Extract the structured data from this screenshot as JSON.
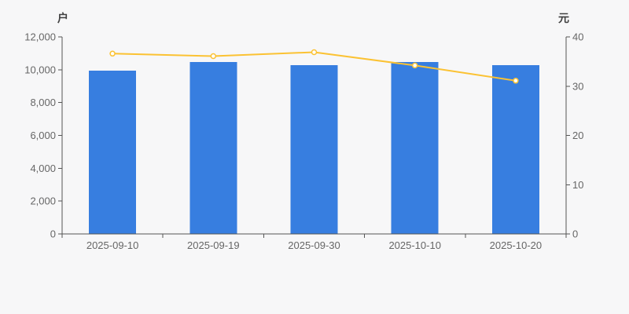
{
  "page": {
    "background": "#f7f7f8"
  },
  "colors": {
    "bar": "#377ee0",
    "line": "#fbc233",
    "marker_fill": "#ffffff",
    "axis_line": "#555555",
    "tick_label": "#666666",
    "axis_name": "#404040"
  },
  "chart_data": {
    "type": "combo-bar-line",
    "title": "",
    "grid": false,
    "legend": false,
    "categories": [
      "2025-09-10",
      "2025-09-19",
      "2025-09-30",
      "2025-10-10",
      "2025-10-20"
    ],
    "series": [
      {
        "type": "bar",
        "yaxis": "left",
        "color": "#377ee0",
        "values": [
          9950,
          10480,
          10270,
          10480,
          10270
        ]
      },
      {
        "type": "line",
        "yaxis": "right",
        "color": "#fbc233",
        "marker": "hollow-circle",
        "values": [
          36.6,
          36.1,
          36.9,
          34.2,
          31.1
        ]
      }
    ],
    "left_axis": {
      "name": "户",
      "min": 0,
      "max": 12000,
      "interval": 2000,
      "tick_labels": [
        "0",
        "2,000",
        "4,000",
        "6,000",
        "8,000",
        "10,000",
        "12,000"
      ]
    },
    "right_axis": {
      "name": "元",
      "min": 0,
      "max": 40,
      "interval": 10,
      "tick_labels": [
        "0",
        "10",
        "20",
        "30",
        "40"
      ]
    }
  }
}
